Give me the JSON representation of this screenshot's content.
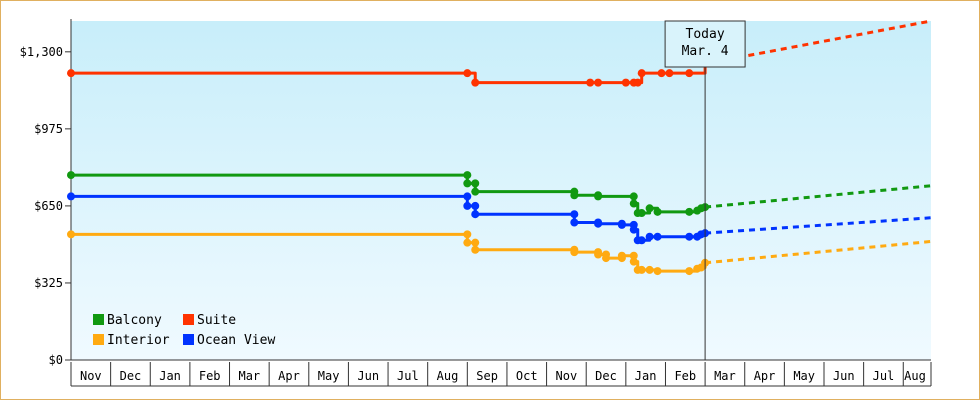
{
  "chart_data": {
    "type": "line",
    "title": "",
    "xlabel": "",
    "ylabel": "",
    "ylim": [
      0,
      1430
    ],
    "y_ticks": [
      {
        "value": 0,
        "label": "$0"
      },
      {
        "value": 325,
        "label": "$325"
      },
      {
        "value": 650,
        "label": "$650"
      },
      {
        "value": 975,
        "label": "$975"
      },
      {
        "value": 1300,
        "label": "$1,300"
      }
    ],
    "x_months": [
      "Nov",
      "Dec",
      "Jan",
      "Feb",
      "Mar",
      "Apr",
      "May",
      "Jun",
      "Jul",
      "Aug",
      "Sep",
      "Oct",
      "Nov",
      "Dec",
      "Jan",
      "Feb",
      "Mar",
      "Apr",
      "May",
      "Jun",
      "Jul",
      "Aug"
    ],
    "today_index": 16.0,
    "today_label_line1": "Today",
    "today_label_line2": "Mar. 4",
    "grid": "vertical-dividers",
    "legend_position": "bottom-left",
    "series": [
      {
        "name": "Suite",
        "color": "#ff3300",
        "points": [
          [
            0.0,
            1210
          ],
          [
            10.0,
            1210
          ],
          [
            10.2,
            1170
          ],
          [
            13.1,
            1170
          ],
          [
            13.3,
            1170
          ],
          [
            14.0,
            1170
          ],
          [
            14.2,
            1170
          ],
          [
            14.3,
            1170
          ],
          [
            14.4,
            1210
          ],
          [
            14.9,
            1210
          ],
          [
            15.1,
            1210
          ],
          [
            15.6,
            1210
          ],
          [
            16.0,
            1250
          ]
        ],
        "forecast": [
          [
            16.0,
            1250
          ],
          [
            21.7,
            1430
          ]
        ]
      },
      {
        "name": "Balcony",
        "color": "#119911",
        "points": [
          [
            0.0,
            780
          ],
          [
            10.0,
            780
          ],
          [
            10.0,
            745
          ],
          [
            10.2,
            745
          ],
          [
            10.2,
            710
          ],
          [
            12.7,
            710
          ],
          [
            12.7,
            695
          ],
          [
            13.3,
            695
          ],
          [
            13.3,
            690
          ],
          [
            14.2,
            690
          ],
          [
            14.2,
            660
          ],
          [
            14.3,
            620
          ],
          [
            14.4,
            620
          ],
          [
            14.6,
            640
          ],
          [
            14.8,
            625
          ],
          [
            15.6,
            625
          ],
          [
            15.8,
            630
          ],
          [
            15.9,
            640
          ],
          [
            16.0,
            645
          ]
        ],
        "forecast": [
          [
            16.0,
            645
          ],
          [
            21.7,
            735
          ]
        ]
      },
      {
        "name": "Ocean View",
        "color": "#0033ff",
        "points": [
          [
            0.0,
            690
          ],
          [
            10.0,
            690
          ],
          [
            10.0,
            650
          ],
          [
            10.2,
            650
          ],
          [
            10.2,
            615
          ],
          [
            12.7,
            615
          ],
          [
            12.7,
            580
          ],
          [
            13.3,
            580
          ],
          [
            13.3,
            575
          ],
          [
            13.9,
            575
          ],
          [
            13.9,
            570
          ],
          [
            14.2,
            570
          ],
          [
            14.2,
            550
          ],
          [
            14.3,
            505
          ],
          [
            14.4,
            505
          ],
          [
            14.6,
            520
          ],
          [
            14.8,
            520
          ],
          [
            15.6,
            520
          ],
          [
            15.8,
            520
          ],
          [
            15.9,
            530
          ],
          [
            16.0,
            535
          ]
        ],
        "forecast": [
          [
            16.0,
            535
          ],
          [
            21.7,
            600
          ]
        ]
      },
      {
        "name": "Interior",
        "color": "#ffaa11",
        "points": [
          [
            0.0,
            530
          ],
          [
            10.0,
            530
          ],
          [
            10.0,
            495
          ],
          [
            10.2,
            495
          ],
          [
            10.2,
            465
          ],
          [
            12.7,
            465
          ],
          [
            12.7,
            455
          ],
          [
            13.3,
            455
          ],
          [
            13.3,
            445
          ],
          [
            13.5,
            445
          ],
          [
            13.5,
            430
          ],
          [
            13.9,
            430
          ],
          [
            13.9,
            440
          ],
          [
            14.2,
            440
          ],
          [
            14.2,
            415
          ],
          [
            14.3,
            380
          ],
          [
            14.4,
            380
          ],
          [
            14.6,
            380
          ],
          [
            14.8,
            375
          ],
          [
            15.6,
            375
          ],
          [
            15.8,
            385
          ],
          [
            15.9,
            390
          ],
          [
            16.0,
            410
          ]
        ],
        "forecast": [
          [
            16.0,
            410
          ],
          [
            21.7,
            500
          ]
        ]
      }
    ]
  }
}
